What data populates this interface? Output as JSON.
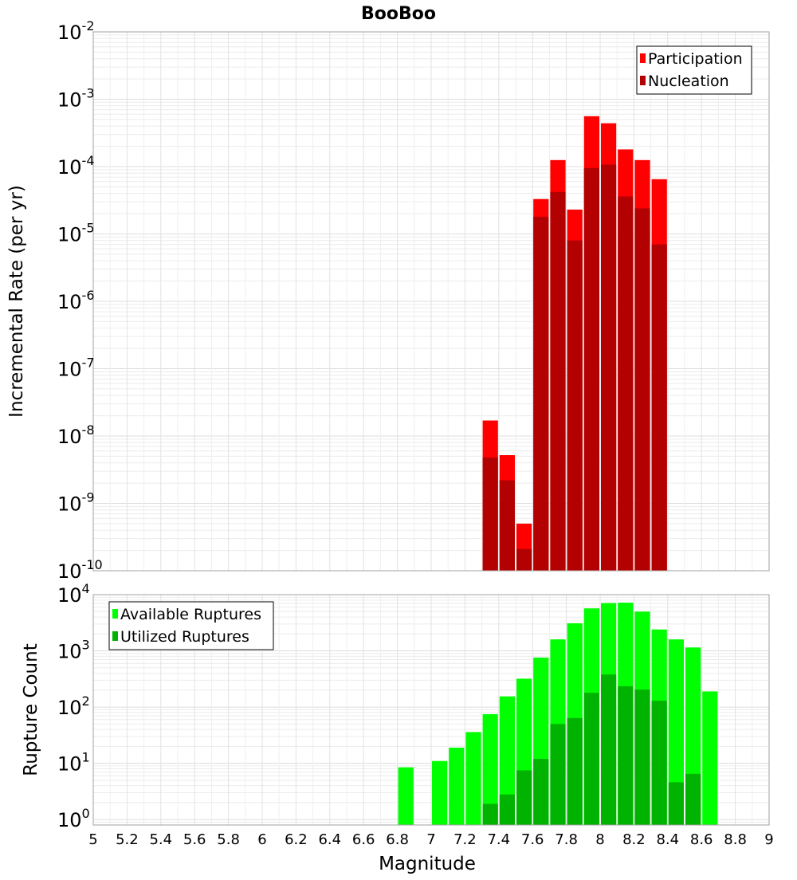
{
  "title": "BooBoo",
  "chart_data": [
    {
      "type": "bar",
      "title": "BooBoo",
      "ylabel": "Incremental Rate (per yr)",
      "xlabel": "",
      "yscale": "log",
      "ylim": [
        1e-10,
        0.01
      ],
      "xlim": [
        5,
        9
      ],
      "y_tick_labels": [
        {
          "base": "10",
          "exp": "-10"
        },
        {
          "base": "10",
          "exp": "-9"
        },
        {
          "base": "10",
          "exp": "-8"
        },
        {
          "base": "10",
          "exp": "-7"
        },
        {
          "base": "10",
          "exp": "-6"
        },
        {
          "base": "10",
          "exp": "-5"
        },
        {
          "base": "10",
          "exp": "-4"
        },
        {
          "base": "10",
          "exp": "-3"
        },
        {
          "base": "10",
          "exp": "-2"
        }
      ],
      "grid": true,
      "legend_position": "top-right",
      "legend": [
        "Participation",
        "Nucleation"
      ],
      "bar_width": 0.1,
      "series": [
        {
          "name": "Participation",
          "color": "#ff0000",
          "x": [
            7.35,
            7.45,
            7.55,
            7.65,
            7.75,
            7.85,
            7.95,
            8.05,
            8.15,
            8.25,
            8.35
          ],
          "values": [
            1.7e-08,
            5.2e-09,
            5e-10,
            3.3e-05,
            0.000125,
            2.3e-05,
            0.00056,
            0.00044,
            0.00018,
            0.000125,
            6.5e-05
          ]
        },
        {
          "name": "Nucleation",
          "color": "#b30000",
          "x": [
            7.35,
            7.45,
            7.55,
            7.65,
            7.75,
            7.85,
            7.95,
            8.05,
            8.15,
            8.25,
            8.35
          ],
          "values": [
            4.8e-09,
            2.2e-09,
            2.1e-10,
            1.8e-05,
            4.2e-05,
            8e-06,
            9.5e-05,
            0.000107,
            3.6e-05,
            2.4e-05,
            7e-06
          ]
        }
      ]
    },
    {
      "type": "bar",
      "title": "",
      "ylabel": "Rupture Count",
      "xlabel": "Magnitude",
      "yscale": "log",
      "ylim": [
        0.8,
        10000
      ],
      "xlim": [
        5,
        9
      ],
      "y_tick_labels": [
        {
          "base": "10",
          "exp": "0"
        },
        {
          "base": "10",
          "exp": "1"
        },
        {
          "base": "10",
          "exp": "2"
        },
        {
          "base": "10",
          "exp": "3"
        },
        {
          "base": "10",
          "exp": "4"
        }
      ],
      "x_tick_labels": [
        "5",
        "5.2",
        "5.4",
        "5.6",
        "5.8",
        "6",
        "6.2",
        "6.4",
        "6.6",
        "6.8",
        "7",
        "7.2",
        "7.4",
        "7.6",
        "7.8",
        "8",
        "8.2",
        "8.4",
        "8.6",
        "8.8",
        "9"
      ],
      "grid": true,
      "legend_position": "top-left",
      "legend": [
        "Available Ruptures",
        "Utilized Ruptures"
      ],
      "bar_width": 0.1,
      "series": [
        {
          "name": "Available Ruptures",
          "color": "#00ff00",
          "x": [
            6.85,
            7.05,
            7.15,
            7.25,
            7.35,
            7.45,
            7.55,
            7.65,
            7.75,
            7.85,
            7.95,
            8.05,
            8.15,
            8.25,
            8.35,
            8.45,
            8.55,
            8.65
          ],
          "values": [
            8.5,
            11,
            19,
            36,
            75,
            155,
            320,
            760,
            1600,
            3100,
            5700,
            7100,
            7200,
            5000,
            2400,
            1600,
            1150,
            190
          ]
        },
        {
          "name": "Utilized Ruptures",
          "color": "#00b300",
          "x": [
            7.35,
            7.45,
            7.55,
            7.65,
            7.75,
            7.85,
            7.95,
            8.05,
            8.15,
            8.25,
            8.35,
            8.45,
            8.55
          ],
          "values": [
            1.9,
            2.8,
            7.5,
            12,
            50,
            64,
            180,
            380,
            235,
            205,
            130,
            4.6,
            6.5
          ]
        }
      ]
    }
  ]
}
